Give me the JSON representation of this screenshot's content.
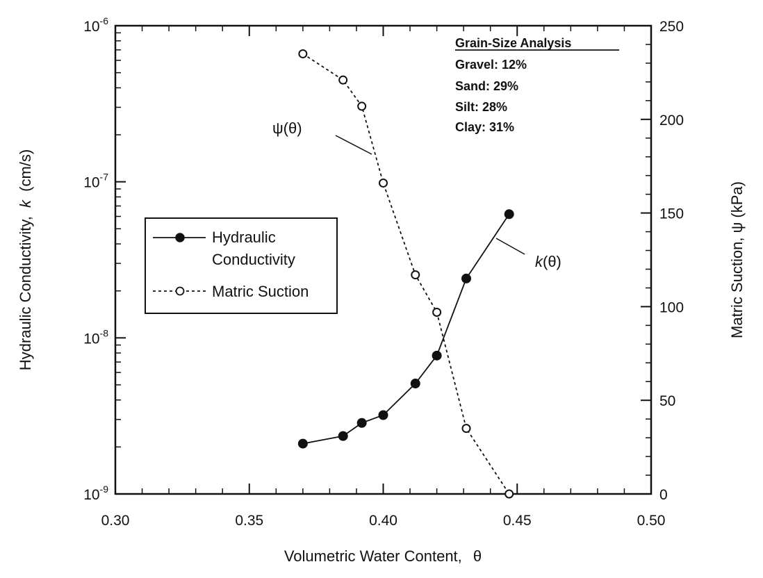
{
  "chart_data": {
    "type": "line",
    "x_axis": {
      "label_main": "Volumetric Water Content,",
      "label_symbol": "θ",
      "range": [
        0.3,
        0.5
      ],
      "ticks": [
        0.3,
        0.35,
        0.4,
        0.45,
        0.5
      ],
      "tick_labels": [
        "0.30",
        "0.35",
        "0.40",
        "0.45",
        "0.50"
      ]
    },
    "y_left": {
      "label_prefix": "Hydraulic Conductivity,",
      "label_var": "k",
      "label_unit": "(cm/s)",
      "scale": "log",
      "range": [
        1e-09,
        1e-06
      ],
      "ticks": [
        -9,
        -8,
        -7,
        -6
      ],
      "tick_labels": [
        "10",
        "10",
        "10",
        "10"
      ],
      "tick_exponents": [
        "-9",
        "-8",
        "-7",
        "-6"
      ]
    },
    "y_right": {
      "label": "Matric Suction, ψ (kPa)",
      "scale": "linear",
      "range": [
        0,
        250
      ],
      "ticks": [
        0,
        50,
        100,
        150,
        200,
        250
      ],
      "tick_labels": [
        "0",
        "50",
        "100",
        "150",
        "200",
        "250"
      ]
    },
    "series": [
      {
        "name": "Hydraulic Conductivity",
        "axis": "left",
        "style": "solid",
        "marker": "filled-circle",
        "x": [
          0.37,
          0.385,
          0.392,
          0.4,
          0.412,
          0.42,
          0.431,
          0.447
        ],
        "y": [
          2.1e-09,
          2.35e-09,
          2.85e-09,
          3.2e-09,
          5.1e-09,
          7.7e-09,
          2.4e-08,
          6.2e-08
        ]
      },
      {
        "name": "Matric Suction",
        "axis": "right",
        "style": "dashed",
        "marker": "open-circle",
        "x": [
          0.37,
          0.385,
          0.392,
          0.4,
          0.412,
          0.42,
          0.431,
          0.447
        ],
        "y": [
          235,
          221,
          207,
          166,
          117,
          97,
          35,
          0
        ]
      }
    ],
    "legend": {
      "placement": "left-center",
      "entries": [
        {
          "lines": [
            "Hydraulic",
            "Conductivity"
          ],
          "marker": "filled-circle",
          "style": "solid"
        },
        {
          "lines": [
            "Matric Suction"
          ],
          "marker": "open-circle",
          "style": "dashed"
        }
      ]
    },
    "annotations": {
      "psi_label": "ψ(θ)",
      "k_label_var": "k",
      "k_label_rest": "(θ)"
    },
    "grain_size_box": {
      "title": "Grain-Size Analysis",
      "lines": [
        "Gravel: 12%",
        "Sand: 29%",
        "Silt: 28%",
        "Clay: 31%"
      ]
    }
  }
}
